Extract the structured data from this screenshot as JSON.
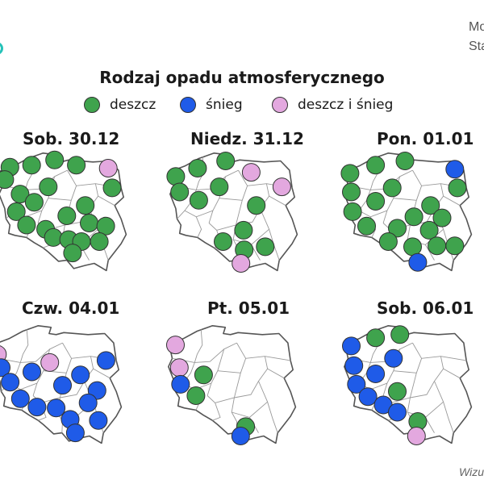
{
  "header": {
    "corner_line1": "Mo",
    "corner_line2": "Sta"
  },
  "colors": {
    "deszcz": "#3fa34d",
    "snieg": "#1f5be8",
    "deszcz_i_snieg": "#e3a8df"
  },
  "chart_data": {
    "type": "map",
    "title": "Rodzaj opadu atmosferycznego",
    "legend": [
      {
        "key": "deszcz",
        "label": "deszcz"
      },
      {
        "key": "snieg",
        "label": "śnieg"
      },
      {
        "key": "deszcz_i_snieg",
        "label": "deszcz i śnieg"
      }
    ],
    "maps": [
      {
        "date": "Sob. 30.12",
        "points": [
          {
            "lon": 15.0,
            "lat": 54.1,
            "type": "deszcz"
          },
          {
            "lon": 16.7,
            "lat": 54.2,
            "type": "deszcz"
          },
          {
            "lon": 18.5,
            "lat": 54.45,
            "type": "deszcz"
          },
          {
            "lon": 20.2,
            "lat": 54.2,
            "type": "deszcz"
          },
          {
            "lon": 22.7,
            "lat": 54.05,
            "type": "deszcz_i_snieg"
          },
          {
            "lon": 14.6,
            "lat": 53.5,
            "type": "deszcz"
          },
          {
            "lon": 18.0,
            "lat": 53.15,
            "type": "deszcz"
          },
          {
            "lon": 23.0,
            "lat": 53.1,
            "type": "deszcz"
          },
          {
            "lon": 15.8,
            "lat": 52.8,
            "type": "deszcz"
          },
          {
            "lon": 16.9,
            "lat": 52.4,
            "type": "deszcz"
          },
          {
            "lon": 20.9,
            "lat": 52.25,
            "type": "deszcz"
          },
          {
            "lon": 15.5,
            "lat": 51.95,
            "type": "deszcz"
          },
          {
            "lon": 19.45,
            "lat": 51.75,
            "type": "deszcz"
          },
          {
            "lon": 16.3,
            "lat": 51.3,
            "type": "deszcz"
          },
          {
            "lon": 17.8,
            "lat": 51.1,
            "type": "deszcz"
          },
          {
            "lon": 21.2,
            "lat": 51.4,
            "type": "deszcz"
          },
          {
            "lon": 22.5,
            "lat": 51.25,
            "type": "deszcz"
          },
          {
            "lon": 18.4,
            "lat": 50.7,
            "type": "deszcz"
          },
          {
            "lon": 19.6,
            "lat": 50.6,
            "type": "deszcz"
          },
          {
            "lon": 20.6,
            "lat": 50.5,
            "type": "deszcz"
          },
          {
            "lon": 22.0,
            "lat": 50.5,
            "type": "deszcz"
          },
          {
            "lon": 19.9,
            "lat": 49.95,
            "type": "deszcz"
          }
        ]
      },
      {
        "date": "Niedz. 31.12",
        "points": [
          {
            "lon": 14.6,
            "lat": 53.65,
            "type": "deszcz"
          },
          {
            "lon": 16.3,
            "lat": 54.05,
            "type": "deszcz"
          },
          {
            "lon": 18.5,
            "lat": 54.4,
            "type": "deszcz"
          },
          {
            "lon": 20.5,
            "lat": 53.85,
            "type": "deszcz_i_snieg"
          },
          {
            "lon": 22.9,
            "lat": 53.15,
            "type": "deszcz_i_snieg"
          },
          {
            "lon": 18.0,
            "lat": 53.15,
            "type": "deszcz"
          },
          {
            "lon": 14.9,
            "lat": 52.9,
            "type": "deszcz"
          },
          {
            "lon": 16.4,
            "lat": 52.5,
            "type": "deszcz"
          },
          {
            "lon": 20.9,
            "lat": 52.25,
            "type": "deszcz"
          },
          {
            "lon": 19.9,
            "lat": 51.05,
            "type": "deszcz"
          },
          {
            "lon": 18.3,
            "lat": 50.5,
            "type": "deszcz"
          },
          {
            "lon": 19.95,
            "lat": 50.1,
            "type": "deszcz"
          },
          {
            "lon": 21.6,
            "lat": 50.25,
            "type": "deszcz"
          },
          {
            "lon": 19.7,
            "lat": 49.45,
            "type": "deszcz_i_snieg"
          }
        ]
      },
      {
        "date": "Pon. 01.01",
        "points": [
          {
            "lon": 14.6,
            "lat": 53.8,
            "type": "deszcz"
          },
          {
            "lon": 16.6,
            "lat": 54.2,
            "type": "deszcz"
          },
          {
            "lon": 18.9,
            "lat": 54.4,
            "type": "deszcz"
          },
          {
            "lon": 22.8,
            "lat": 54.0,
            "type": "snieg"
          },
          {
            "lon": 17.9,
            "lat": 53.1,
            "type": "deszcz"
          },
          {
            "lon": 23.0,
            "lat": 53.1,
            "type": "deszcz"
          },
          {
            "lon": 14.7,
            "lat": 52.9,
            "type": "deszcz"
          },
          {
            "lon": 16.6,
            "lat": 52.45,
            "type": "deszcz"
          },
          {
            "lon": 20.9,
            "lat": 52.25,
            "type": "deszcz"
          },
          {
            "lon": 14.8,
            "lat": 51.95,
            "type": "deszcz"
          },
          {
            "lon": 19.6,
            "lat": 51.7,
            "type": "deszcz"
          },
          {
            "lon": 21.8,
            "lat": 51.65,
            "type": "deszcz"
          },
          {
            "lon": 15.9,
            "lat": 51.25,
            "type": "deszcz"
          },
          {
            "lon": 18.3,
            "lat": 51.15,
            "type": "deszcz"
          },
          {
            "lon": 20.8,
            "lat": 51.05,
            "type": "deszcz"
          },
          {
            "lon": 17.6,
            "lat": 50.5,
            "type": "deszcz"
          },
          {
            "lon": 19.5,
            "lat": 50.25,
            "type": "deszcz"
          },
          {
            "lon": 21.4,
            "lat": 50.3,
            "type": "deszcz"
          },
          {
            "lon": 22.8,
            "lat": 50.3,
            "type": "deszcz"
          },
          {
            "lon": 19.9,
            "lat": 49.5,
            "type": "snieg"
          }
        ]
      },
      {
        "date": "Czw. 04.01",
        "points": [
          {
            "lon": 14.4,
            "lat": 53.4,
            "type": "deszcz_i_snieg"
          },
          {
            "lon": 18.5,
            "lat": 53.0,
            "type": "deszcz_i_snieg"
          },
          {
            "lon": 22.9,
            "lat": 53.1,
            "type": "snieg"
          },
          {
            "lon": 14.7,
            "lat": 52.75,
            "type": "snieg"
          },
          {
            "lon": 17.1,
            "lat": 52.55,
            "type": "snieg"
          },
          {
            "lon": 20.9,
            "lat": 52.4,
            "type": "snieg"
          },
          {
            "lon": 15.4,
            "lat": 52.05,
            "type": "snieg"
          },
          {
            "lon": 19.5,
            "lat": 51.9,
            "type": "snieg"
          },
          {
            "lon": 22.2,
            "lat": 51.65,
            "type": "snieg"
          },
          {
            "lon": 16.2,
            "lat": 51.25,
            "type": "snieg"
          },
          {
            "lon": 17.5,
            "lat": 50.85,
            "type": "snieg"
          },
          {
            "lon": 19.0,
            "lat": 50.8,
            "type": "snieg"
          },
          {
            "lon": 21.5,
            "lat": 51.05,
            "type": "snieg"
          },
          {
            "lon": 20.1,
            "lat": 50.25,
            "type": "snieg"
          },
          {
            "lon": 22.3,
            "lat": 50.2,
            "type": "snieg"
          },
          {
            "lon": 20.5,
            "lat": 49.6,
            "type": "snieg"
          }
        ]
      },
      {
        "date": "Pt. 05.01",
        "points": [
          {
            "lon": 14.7,
            "lat": 53.85,
            "type": "deszcz_i_snieg"
          },
          {
            "lon": 15.0,
            "lat": 52.75,
            "type": "deszcz_i_snieg"
          },
          {
            "lon": 16.9,
            "lat": 52.4,
            "type": "deszcz"
          },
          {
            "lon": 15.1,
            "lat": 51.95,
            "type": "snieg"
          },
          {
            "lon": 16.3,
            "lat": 51.4,
            "type": "deszcz"
          },
          {
            "lon": 20.2,
            "lat": 49.9,
            "type": "deszcz"
          },
          {
            "lon": 19.8,
            "lat": 49.45,
            "type": "snieg"
          }
        ]
      },
      {
        "date": "Sob. 06.01",
        "points": [
          {
            "lon": 14.7,
            "lat": 53.8,
            "type": "snieg"
          },
          {
            "lon": 16.6,
            "lat": 54.2,
            "type": "deszcz"
          },
          {
            "lon": 18.5,
            "lat": 54.35,
            "type": "deszcz"
          },
          {
            "lon": 18.0,
            "lat": 53.2,
            "type": "snieg"
          },
          {
            "lon": 14.9,
            "lat": 52.85,
            "type": "snieg"
          },
          {
            "lon": 16.6,
            "lat": 52.45,
            "type": "snieg"
          },
          {
            "lon": 15.1,
            "lat": 51.95,
            "type": "snieg"
          },
          {
            "lon": 18.3,
            "lat": 51.6,
            "type": "deszcz"
          },
          {
            "lon": 16.0,
            "lat": 51.35,
            "type": "snieg"
          },
          {
            "lon": 17.2,
            "lat": 50.95,
            "type": "snieg"
          },
          {
            "lon": 18.3,
            "lat": 50.6,
            "type": "snieg"
          },
          {
            "lon": 19.9,
            "lat": 50.15,
            "type": "deszcz"
          },
          {
            "lon": 19.8,
            "lat": 49.45,
            "type": "deszcz_i_snieg"
          }
        ]
      }
    ]
  },
  "footer": {
    "credit": "Wizu"
  }
}
